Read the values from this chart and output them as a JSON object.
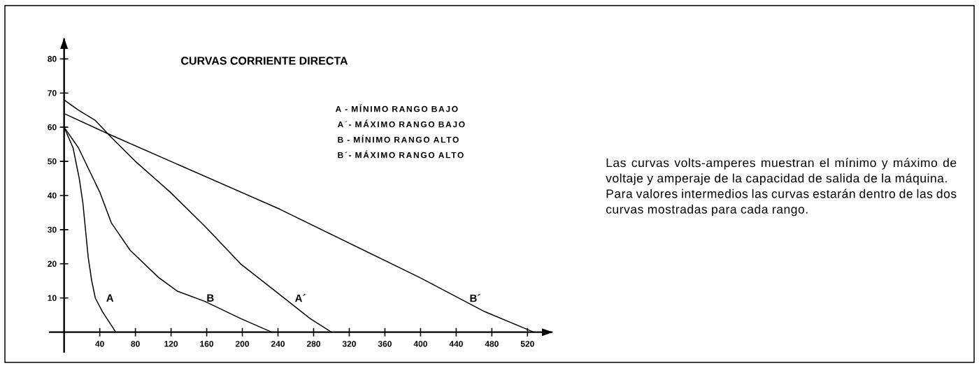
{
  "chart_data": {
    "type": "line",
    "title": "CURVAS CORRIENTE DIRECTA",
    "annotations": [
      "A - MÍNIMO RANGO BAJO",
      "A´- MÁXIMO RANGO BAJO",
      "B - MÍNIMO RANGO ALTO",
      "B´- MÁXIMO RANGO ALTO",
      "Las curvas volts-amperes muestran el mínimo y máximo de voltaje y amperaje de la capacidad de salida de la máquina.",
      "Para valores intermedios las curvas estarán dentro de las dos curvas mostradas para cada rango."
    ],
    "xlim": [
      -17,
      548
    ],
    "ylim": [
      -6,
      86
    ],
    "xticks": [
      40,
      80,
      120,
      160,
      200,
      240,
      280,
      320,
      360,
      400,
      440,
      480,
      520
    ],
    "yticks": [
      10,
      20,
      30,
      40,
      50,
      60,
      70,
      80
    ],
    "marker": "none",
    "line_style": "solid",
    "series": [
      {
        "name": "A",
        "color": "#000000",
        "x": [
          0,
          10,
          17,
          21,
          24,
          27,
          31,
          35,
          43,
          58
        ],
        "values": [
          60,
          54,
          45,
          38,
          30,
          22,
          15,
          10,
          6,
          0
        ]
      },
      {
        "name": "B",
        "color": "#000000",
        "x": [
          0,
          16,
          40,
          53,
          74,
          106,
          127,
          158,
          198,
          233
        ],
        "values": [
          60,
          54,
          41,
          32,
          24,
          16,
          12,
          9,
          4,
          0
        ]
      },
      {
        "name": "A´",
        "color": "#000000",
        "x": [
          0,
          16,
          35,
          53,
          80,
          119,
          158,
          198,
          237,
          276,
          300
        ],
        "values": [
          68,
          65,
          62,
          57,
          50,
          41,
          31,
          20,
          12,
          4,
          0
        ]
      },
      {
        "name": "B´",
        "color": "#000000",
        "x": [
          0,
          50,
          242,
          399,
          472,
          527
        ],
        "values": [
          64,
          58,
          36,
          16,
          6,
          0
        ]
      }
    ]
  }
}
